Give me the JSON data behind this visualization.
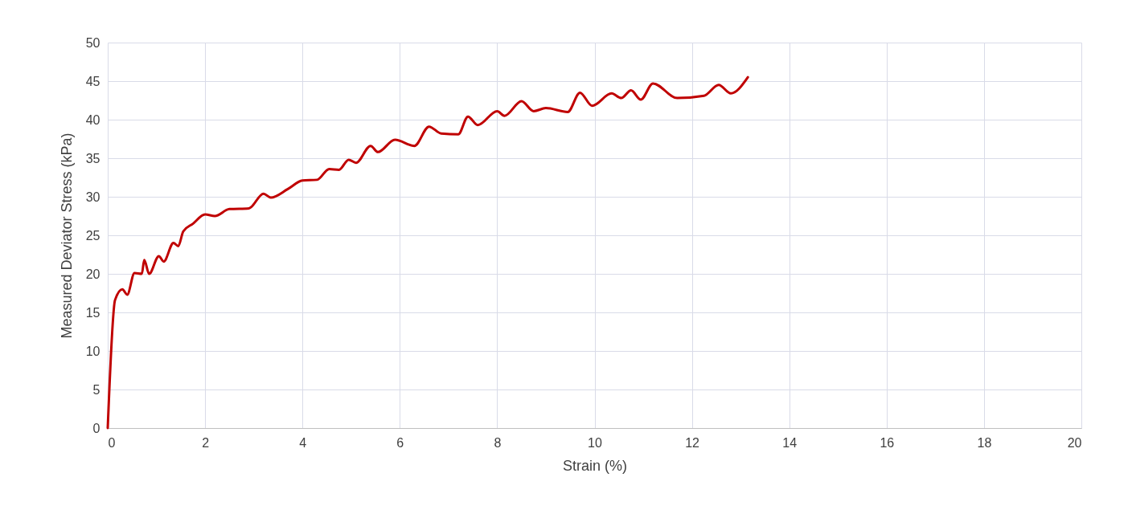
{
  "chart_data": {
    "type": "line",
    "xlabel": "Strain (%)",
    "ylabel": "Measured Deviator Stress (kPa)",
    "x": [
      0,
      0.15,
      0.3,
      0.4,
      0.55,
      0.7,
      0.75,
      0.85,
      1.05,
      1.15,
      1.35,
      1.45,
      1.55,
      1.75,
      2.0,
      2.2,
      2.5,
      2.9,
      3.2,
      3.35,
      3.7,
      4.0,
      4.3,
      4.55,
      4.75,
      4.95,
      5.1,
      5.4,
      5.55,
      5.9,
      6.3,
      6.6,
      6.85,
      7.2,
      7.4,
      7.6,
      8.0,
      8.15,
      8.5,
      8.75,
      9.0,
      9.45,
      9.7,
      9.95,
      10.35,
      10.55,
      10.75,
      10.95,
      11.2,
      11.7,
      12.25,
      12.55,
      12.8,
      13.15
    ],
    "series": [
      {
        "color": "#c00000",
        "values": [
          0,
          16.6,
          18.0,
          17.3,
          20.1,
          20.0,
          21.8,
          20.0,
          22.3,
          21.6,
          24.0,
          23.6,
          25.5,
          26.5,
          27.7,
          27.5,
          28.4,
          28.5,
          30.4,
          29.9,
          31.0,
          32.1,
          32.2,
          33.6,
          33.5,
          34.8,
          34.4,
          36.6,
          35.8,
          37.4,
          36.6,
          39.1,
          38.2,
          38.1,
          40.4,
          39.3,
          41.1,
          40.5,
          42.4,
          41.1,
          41.5,
          41.0,
          43.5,
          41.8,
          43.4,
          42.8,
          43.8,
          42.6,
          44.7,
          42.8,
          43.1,
          44.5,
          43.4,
          45.5
        ]
      }
    ],
    "xlim": [
      0,
      20
    ],
    "xticks": [
      0,
      2,
      4,
      6,
      8,
      10,
      12,
      14,
      16,
      18,
      20
    ],
    "ylim": [
      0,
      50
    ],
    "yticks": [
      0,
      5,
      10,
      15,
      20,
      25,
      30,
      35,
      40,
      45,
      50
    ],
    "grid": true,
    "marker": "none",
    "line_style": "solid",
    "legend": false
  }
}
